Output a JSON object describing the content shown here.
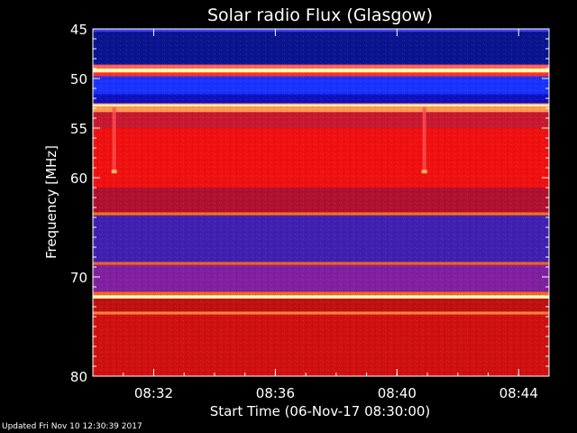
{
  "chart_data": {
    "type": "heatmap",
    "title": "Solar radio Flux (Glasgow)",
    "xlabel": "Start Time (06-Nov-17 08:30:00)",
    "ylabel": "Frequency [MHz]",
    "x_range_minutes": [
      0,
      15
    ],
    "x_ticks": [
      {
        "label": "08:32",
        "minute": 2
      },
      {
        "label": "08:36",
        "minute": 6
      },
      {
        "label": "08:40",
        "minute": 10
      },
      {
        "label": "08:44",
        "minute": 14
      }
    ],
    "y_range_mhz": [
      45,
      80
    ],
    "y_ticks": [
      {
        "label": "45",
        "mhz": 45
      },
      {
        "label": "50",
        "mhz": 50
      },
      {
        "label": "55",
        "mhz": 55
      },
      {
        "label": "60",
        "mhz": 60
      },
      {
        "label": "70",
        "mhz": 70
      },
      {
        "label": "80",
        "mhz": 80
      }
    ],
    "bands": [
      {
        "from": 45.0,
        "to": 45.3,
        "color": "#4040ff"
      },
      {
        "from": 45.3,
        "to": 48.6,
        "color": "#0a1490"
      },
      {
        "from": 48.6,
        "to": 49.0,
        "color": "#ff6060"
      },
      {
        "from": 49.0,
        "to": 49.4,
        "color": "#ffff80"
      },
      {
        "from": 49.4,
        "to": 49.8,
        "color": "#ff3030"
      },
      {
        "from": 49.8,
        "to": 51.6,
        "color": "#1a32ff"
      },
      {
        "from": 51.6,
        "to": 52.5,
        "color": "#1010c0"
      },
      {
        "from": 52.5,
        "to": 52.9,
        "color": "#ff8040"
      },
      {
        "from": 52.9,
        "to": 53.4,
        "color": "#ff9a50"
      },
      {
        "from": 53.4,
        "to": 55.0,
        "color": "#c81830"
      },
      {
        "from": 55.0,
        "to": 61.0,
        "color": "#f01010"
      },
      {
        "from": 61.0,
        "to": 63.5,
        "color": "#b01030"
      },
      {
        "from": 63.5,
        "to": 63.8,
        "color": "#ff7020"
      },
      {
        "from": 63.8,
        "to": 68.5,
        "color": "#4020b0"
      },
      {
        "from": 68.5,
        "to": 68.8,
        "color": "#ff6020"
      },
      {
        "from": 68.8,
        "to": 71.5,
        "color": "#8020a0"
      },
      {
        "from": 71.5,
        "to": 71.8,
        "color": "#ff6020"
      },
      {
        "from": 71.8,
        "to": 72.2,
        "color": "#ffd080"
      },
      {
        "from": 72.2,
        "to": 73.5,
        "color": "#c01010"
      },
      {
        "from": 73.5,
        "to": 73.8,
        "color": "#ff8040"
      },
      {
        "from": 73.8,
        "to": 80.0,
        "color": "#d01010"
      }
    ],
    "bright_lines_mhz": [
      49.2,
      52.7,
      72.0
    ],
    "burst_columns_minutes": [
      0.7,
      10.9
    ]
  },
  "footer": "Updated Fri Nov 10 12:30:39 2017"
}
